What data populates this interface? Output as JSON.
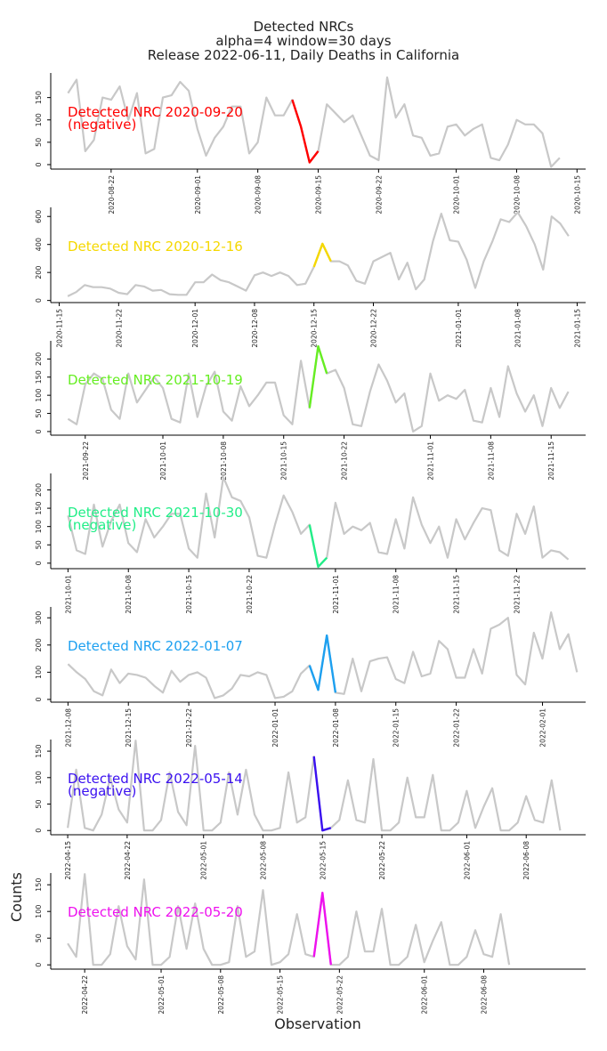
{
  "title_lines": [
    "Detected NRCs",
    "alpha=4 window=30 days",
    "Release 2022-06-11, Daily Deaths in California"
  ],
  "xlabel": "Observation",
  "ylabel": "Counts",
  "colors": {
    "base_line": "#c8c8c8",
    "axis": "#000000"
  },
  "chart_data": [
    {
      "type": "line",
      "annotation": "Detected NRC 2020-09-20\n(negative)",
      "highlight_color": "#ff0000",
      "ylim": [
        -10,
        205
      ],
      "yticks": [
        0,
        50,
        100,
        150
      ],
      "xlim": [
        -2,
        60
      ],
      "xticks": [
        {
          "i": 5,
          "label": "2020-08-22"
        },
        {
          "i": 15,
          "label": "2020-09-01"
        },
        {
          "i": 22,
          "label": "2020-09-08"
        },
        {
          "i": 29,
          "label": "2020-09-15"
        },
        {
          "i": 36,
          "label": "2020-09-22"
        },
        {
          "i": 45,
          "label": "2020-10-01"
        },
        {
          "i": 52,
          "label": "2020-10-08"
        },
        {
          "i": 59,
          "label": "2020-10-15"
        }
      ],
      "values": [
        160,
        190,
        30,
        55,
        150,
        145,
        175,
        100,
        160,
        25,
        35,
        150,
        155,
        185,
        165,
        80,
        20,
        60,
        85,
        130,
        130,
        25,
        50,
        150,
        110,
        110,
        145,
        85,
        5,
        30,
        135,
        115,
        95,
        110,
        65,
        20,
        10,
        195,
        105,
        135,
        65,
        60,
        20,
        25,
        85,
        90,
        65,
        80,
        90,
        15,
        10,
        45,
        100,
        90,
        90,
        70,
        -5,
        15
      ],
      "highlight": [
        26,
        29
      ]
    },
    {
      "type": "line",
      "annotation": "Detected NRC 2020-12-16",
      "highlight_color": "#f5d800",
      "ylim": [
        -15,
        665
      ],
      "yticks": [
        0,
        200,
        400,
        600
      ],
      "xlim": [
        -2,
        61
      ],
      "xticks": [
        {
          "i": -1,
          "label": "2020-11-15"
        },
        {
          "i": 6,
          "label": "2020-11-22"
        },
        {
          "i": 15,
          "label": "2020-12-01"
        },
        {
          "i": 22,
          "label": "2020-12-08"
        },
        {
          "i": 29,
          "label": "2020-12-15"
        },
        {
          "i": 36,
          "label": "2020-12-22"
        },
        {
          "i": 46,
          "label": "2021-01-01"
        },
        {
          "i": 53,
          "label": "2021-01-08"
        },
        {
          "i": 60,
          "label": "2021-01-15"
        }
      ],
      "values": [
        30,
        60,
        110,
        95,
        95,
        85,
        55,
        45,
        110,
        100,
        70,
        75,
        45,
        40,
        40,
        130,
        130,
        185,
        145,
        130,
        100,
        70,
        180,
        200,
        175,
        200,
        175,
        110,
        120,
        240,
        405,
        280,
        280,
        250,
        140,
        120,
        280,
        310,
        340,
        150,
        270,
        80,
        150,
        420,
        620,
        430,
        420,
        290,
        90,
        280,
        420,
        580,
        560,
        630,
        530,
        400,
        220,
        600,
        550,
        460
      ],
      "highlight": [
        29,
        31
      ]
    },
    {
      "type": "line",
      "annotation": "Detected NRC 2021-10-19",
      "highlight_color": "#66ee22",
      "ylim": [
        -10,
        250
      ],
      "yticks": [
        0,
        50,
        100,
        150,
        200
      ],
      "xlim": [
        -2,
        60
      ],
      "xticks": [
        {
          "i": 2,
          "label": "2021-09-22"
        },
        {
          "i": 11,
          "label": "2021-10-01"
        },
        {
          "i": 18,
          "label": "2021-10-08"
        },
        {
          "i": 25,
          "label": "2021-10-15"
        },
        {
          "i": 32,
          "label": "2021-10-22"
        },
        {
          "i": 42,
          "label": "2021-11-01"
        },
        {
          "i": 49,
          "label": "2021-11-08"
        },
        {
          "i": 56,
          "label": "2021-11-15"
        }
      ],
      "values": [
        35,
        20,
        130,
        160,
        145,
        60,
        35,
        160,
        80,
        115,
        150,
        120,
        35,
        25,
        160,
        40,
        125,
        165,
        55,
        30,
        125,
        70,
        100,
        135,
        135,
        45,
        20,
        195,
        65,
        235,
        160,
        170,
        120,
        20,
        15,
        110,
        185,
        140,
        80,
        105,
        0,
        15,
        160,
        85,
        100,
        90,
        115,
        30,
        25,
        120,
        40,
        180,
        105,
        55,
        100,
        15,
        120,
        65,
        110
      ],
      "highlight": [
        28,
        30
      ]
    },
    {
      "type": "line",
      "annotation": "Detected NRC 2021-10-30\n(negative)",
      "highlight_color": "#22ee88",
      "ylim": [
        -15,
        245
      ],
      "yticks": [
        0,
        50,
        100,
        150,
        200
      ],
      "xlim": [
        -2,
        60
      ],
      "xticks": [
        {
          "i": 0,
          "label": "2021-10-01"
        },
        {
          "i": 7,
          "label": "2021-10-08"
        },
        {
          "i": 14,
          "label": "2021-10-15"
        },
        {
          "i": 21,
          "label": "2021-10-22"
        },
        {
          "i": 31,
          "label": "2021-11-01"
        },
        {
          "i": 38,
          "label": "2021-11-08"
        },
        {
          "i": 45,
          "label": "2021-11-15"
        },
        {
          "i": 52,
          "label": "2021-11-22"
        }
      ],
      "values": [
        130,
        35,
        25,
        160,
        45,
        115,
        160,
        55,
        30,
        120,
        70,
        100,
        135,
        135,
        40,
        15,
        190,
        70,
        235,
        180,
        170,
        125,
        20,
        15,
        105,
        185,
        140,
        80,
        105,
        -10,
        15,
        165,
        80,
        100,
        90,
        110,
        30,
        25,
        120,
        40,
        180,
        105,
        55,
        100,
        15,
        120,
        65,
        110,
        150,
        145,
        35,
        20,
        135,
        80,
        155,
        15,
        35,
        30,
        10
      ],
      "highlight": [
        28,
        30
      ]
    },
    {
      "type": "line",
      "annotation": "Detected NRC 2022-01-07",
      "highlight_color": "#1da0f0",
      "ylim": [
        -10,
        340
      ],
      "yticks": [
        0,
        100,
        200,
        300
      ],
      "xlim": [
        -2,
        60
      ],
      "xticks": [
        {
          "i": 0,
          "label": "2021-12-08"
        },
        {
          "i": 7,
          "label": "2021-12-15"
        },
        {
          "i": 14,
          "label": "2021-12-22"
        },
        {
          "i": 24,
          "label": "2022-01-01"
        },
        {
          "i": 31,
          "label": "2022-01-08"
        },
        {
          "i": 38,
          "label": "2022-01-15"
        },
        {
          "i": 45,
          "label": "2022-01-22"
        },
        {
          "i": 55,
          "label": "2022-02-01"
        }
      ],
      "values": [
        130,
        100,
        75,
        30,
        15,
        110,
        60,
        95,
        90,
        80,
        50,
        25,
        105,
        65,
        90,
        100,
        80,
        5,
        15,
        40,
        90,
        85,
        100,
        90,
        5,
        10,
        30,
        95,
        125,
        35,
        235,
        25,
        20,
        150,
        30,
        140,
        150,
        155,
        75,
        60,
        175,
        85,
        95,
        215,
        185,
        80,
        80,
        185,
        95,
        260,
        275,
        300,
        90,
        55,
        245,
        150,
        320,
        185,
        240,
        100
      ],
      "highlight": [
        28,
        31
      ]
    },
    {
      "type": "line",
      "annotation": "Detected NRC 2022-05-14\n(negative)",
      "highlight_color": "#3a10f0",
      "ylim": [
        -8,
        172
      ],
      "yticks": [
        0,
        50,
        100,
        150
      ],
      "xlim": [
        -2,
        61
      ],
      "xticks": [
        {
          "i": 0,
          "label": "2022-04-15"
        },
        {
          "i": 7,
          "label": "2022-04-22"
        },
        {
          "i": 16,
          "label": "2022-05-01"
        },
        {
          "i": 23,
          "label": "2022-05-08"
        },
        {
          "i": 30,
          "label": "2022-05-15"
        },
        {
          "i": 37,
          "label": "2022-05-22"
        },
        {
          "i": 47,
          "label": "2022-06-01"
        },
        {
          "i": 54,
          "label": "2022-06-08"
        }
      ],
      "values": [
        5,
        115,
        5,
        0,
        30,
        100,
        40,
        15,
        170,
        0,
        0,
        20,
        110,
        35,
        10,
        160,
        0,
        0,
        15,
        110,
        30,
        115,
        30,
        0,
        0,
        5,
        110,
        15,
        25,
        140,
        0,
        5,
        20,
        95,
        20,
        15,
        135,
        0,
        0,
        15,
        100,
        25,
        25,
        105,
        0,
        0,
        15,
        75,
        5,
        45,
        80,
        0,
        0,
        15,
        65,
        20,
        15,
        95,
        0
      ],
      "highlight": [
        29,
        31
      ]
    },
    {
      "type": "line",
      "annotation": "Detected NRC 2022-05-20",
      "highlight_color": "#ee11ee",
      "ylim": [
        -8,
        172
      ],
      "yticks": [
        0,
        50,
        100,
        150
      ],
      "xlim": [
        -2,
        61
      ],
      "xticks": [
        {
          "i": 2,
          "label": "2022-04-22"
        },
        {
          "i": 11,
          "label": "2022-05-01"
        },
        {
          "i": 18,
          "label": "2022-05-08"
        },
        {
          "i": 25,
          "label": "2022-05-15"
        },
        {
          "i": 32,
          "label": "2022-05-22"
        },
        {
          "i": 42,
          "label": "2022-06-01"
        },
        {
          "i": 49,
          "label": "2022-06-08"
        }
      ],
      "values": [
        40,
        15,
        170,
        0,
        0,
        20,
        110,
        35,
        10,
        160,
        0,
        0,
        15,
        110,
        30,
        115,
        30,
        0,
        0,
        5,
        110,
        15,
        25,
        140,
        0,
        5,
        20,
        95,
        20,
        15,
        135,
        0,
        0,
        15,
        100,
        25,
        25,
        105,
        0,
        0,
        15,
        75,
        5,
        45,
        80,
        0,
        0,
        15,
        65,
        20,
        15,
        95,
        0
      ],
      "highlight": [
        29,
        31
      ]
    }
  ]
}
